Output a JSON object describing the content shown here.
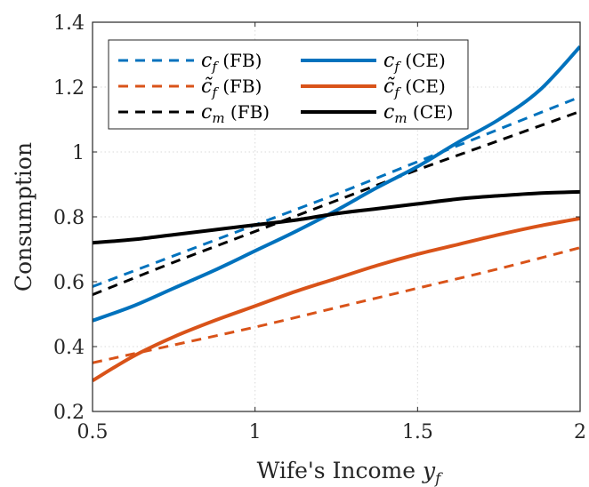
{
  "chart_data": {
    "type": "line",
    "xlabel": "Wife's Income y_f",
    "ylabel": "Consumption",
    "xlim": [
      0.5,
      2
    ],
    "ylim": [
      0.2,
      1.4
    ],
    "xticks": [
      0.5,
      1,
      1.5,
      2
    ],
    "xtick_labels": [
      "0.5",
      "1",
      "1.5",
      "2"
    ],
    "yticks": [
      0.2,
      0.4,
      0.6,
      0.8,
      1,
      1.2,
      1.4
    ],
    "ytick_labels": [
      "0.2",
      "0.4",
      "0.6",
      "0.8",
      "1",
      "1.2",
      "1.4"
    ],
    "grid": true,
    "legend_position": "top-left",
    "legend_columns": 2,
    "series": [
      {
        "name": "c_f (FB)",
        "color": "#0072BD",
        "dash": "dashed",
        "x": [
          0.5,
          0.75,
          1.0,
          1.25,
          1.5,
          1.75,
          2.0
        ],
        "y": [
          0.585,
          0.68,
          0.775,
          0.87,
          0.97,
          1.07,
          1.17
        ]
      },
      {
        "name": "c̃_f (FB)",
        "color": "#D95319",
        "dash": "dashed",
        "x": [
          0.5,
          0.75,
          1.0,
          1.25,
          1.5,
          1.75,
          2.0
        ],
        "y": [
          0.35,
          0.405,
          0.46,
          0.52,
          0.58,
          0.64,
          0.705
        ]
      },
      {
        "name": "c_m (FB)",
        "color": "#000000",
        "dash": "dashed",
        "x": [
          0.5,
          0.75,
          1.0,
          1.25,
          1.5,
          1.75,
          2.0
        ],
        "y": [
          0.56,
          0.66,
          0.755,
          0.85,
          0.945,
          1.035,
          1.125
        ]
      },
      {
        "name": "c_f (CE)",
        "color": "#0072BD",
        "dash": "solid",
        "x": [
          0.5,
          0.625,
          0.75,
          0.875,
          1.0,
          1.125,
          1.25,
          1.375,
          1.5,
          1.625,
          1.75,
          1.875,
          2.0
        ],
        "y": [
          0.48,
          0.525,
          0.58,
          0.635,
          0.695,
          0.755,
          0.82,
          0.89,
          0.955,
          1.03,
          1.1,
          1.19,
          1.325
        ]
      },
      {
        "name": "c̃_f (CE)",
        "color": "#D95319",
        "dash": "solid",
        "x": [
          0.5,
          0.625,
          0.75,
          0.875,
          1.0,
          1.125,
          1.25,
          1.375,
          1.5,
          1.625,
          1.75,
          1.875,
          2.0
        ],
        "y": [
          0.295,
          0.37,
          0.43,
          0.48,
          0.525,
          0.57,
          0.61,
          0.65,
          0.685,
          0.715,
          0.745,
          0.772,
          0.795
        ]
      },
      {
        "name": "c_m (CE)",
        "color": "#000000",
        "dash": "solid",
        "x": [
          0.5,
          0.625,
          0.75,
          0.875,
          1.0,
          1.125,
          1.25,
          1.375,
          1.5,
          1.625,
          1.75,
          1.875,
          2.0
        ],
        "y": [
          0.72,
          0.73,
          0.745,
          0.76,
          0.775,
          0.79,
          0.81,
          0.825,
          0.84,
          0.855,
          0.865,
          0.873,
          0.877
        ]
      }
    ]
  }
}
